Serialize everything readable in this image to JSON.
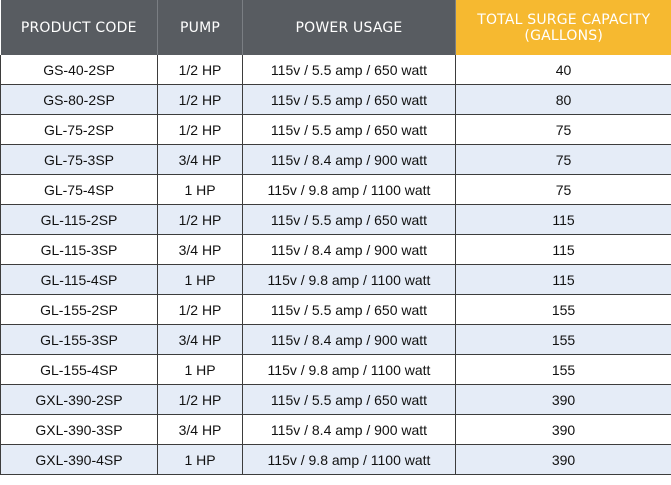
{
  "table": {
    "headers": {
      "product_code": "PRODUCT CODE",
      "pump": "PUMP",
      "power_usage": "POWER USAGE",
      "surge_capacity_line1": "TOTAL SURGE CAPACITY",
      "surge_capacity_line2": "(GALLONS)"
    },
    "accent_color": "#f6b930",
    "header_color": "#585c61",
    "stripe_color": "#e5ecf7",
    "rows": [
      {
        "product_code": "GS-40-2SP",
        "pump": "1/2 HP",
        "power_usage": "115v / 5.5 amp / 650 watt",
        "surge_capacity": "40"
      },
      {
        "product_code": "GS-80-2SP",
        "pump": "1/2 HP",
        "power_usage": "115v / 5.5 amp / 650 watt",
        "surge_capacity": "80"
      },
      {
        "product_code": "GL-75-2SP",
        "pump": "1/2 HP",
        "power_usage": "115v / 5.5 amp / 650 watt",
        "surge_capacity": "75"
      },
      {
        "product_code": "GL-75-3SP",
        "pump": "3/4 HP",
        "power_usage": "115v / 8.4 amp / 900 watt",
        "surge_capacity": "75"
      },
      {
        "product_code": "GL-75-4SP",
        "pump": "1 HP",
        "power_usage": "115v / 9.8 amp / 1100 watt",
        "surge_capacity": "75"
      },
      {
        "product_code": "GL-115-2SP",
        "pump": "1/2 HP",
        "power_usage": "115v / 5.5 amp / 650 watt",
        "surge_capacity": "115"
      },
      {
        "product_code": "GL-115-3SP",
        "pump": "3/4 HP",
        "power_usage": "115v / 8.4 amp / 900 watt",
        "surge_capacity": "115"
      },
      {
        "product_code": "GL-115-4SP",
        "pump": "1 HP",
        "power_usage": "115v / 9.8 amp / 1100 watt",
        "surge_capacity": "115"
      },
      {
        "product_code": "GL-155-2SP",
        "pump": "1/2 HP",
        "power_usage": "115v / 5.5 amp / 650 watt",
        "surge_capacity": "155"
      },
      {
        "product_code": "GL-155-3SP",
        "pump": "3/4 HP",
        "power_usage": "115v / 8.4 amp / 900 watt",
        "surge_capacity": "155"
      },
      {
        "product_code": "GL-155-4SP",
        "pump": "1 HP",
        "power_usage": "115v / 9.8 amp / 1100 watt",
        "surge_capacity": "155"
      },
      {
        "product_code": "GXL-390-2SP",
        "pump": "1/2 HP",
        "power_usage": "115v / 5.5 amp / 650 watt",
        "surge_capacity": "390"
      },
      {
        "product_code": "GXL-390-3SP",
        "pump": "3/4 HP",
        "power_usage": "115v / 8.4 amp / 900 watt",
        "surge_capacity": "390"
      },
      {
        "product_code": "GXL-390-4SP",
        "pump": "1 HP",
        "power_usage": "115v / 9.8 amp / 1100 watt",
        "surge_capacity": "390"
      }
    ]
  }
}
